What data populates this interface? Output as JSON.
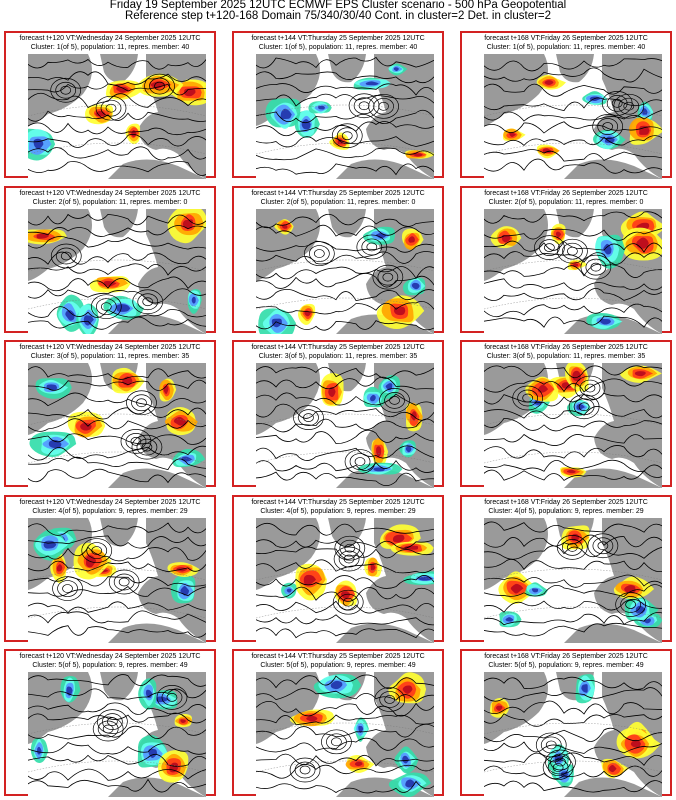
{
  "header": {
    "line1": "Friday 19 September 2025 12UTC ECMWF EPS Cluster scenario - 500 hPa Geopotential",
    "line2": "Reference step t+120-168 Domain 75/340/30/40 Cont. in cluster=2 Det. in cluster=2"
  },
  "panels": [
    {
      "forecast": "forecast t+120 VT:Wednesday 24 September 2025 12UTC",
      "cluster": "Cluster: 1(of 5), population: 11, repres. member: 40"
    },
    {
      "forecast": "forecast t+144 VT:Thursday 25 September 2025 12UTC",
      "cluster": "Cluster: 1(of 5), population: 11, repres. member: 40"
    },
    {
      "forecast": "forecast t+168 VT:Friday 26 September 2025 12UTC",
      "cluster": "Cluster: 1(of 5), population: 11, repres. member: 40"
    },
    {
      "forecast": "forecast t+120 VT:Wednesday 24 September 2025 12UTC",
      "cluster": "Cluster: 2(of 5), population: 11, repres. member: 0"
    },
    {
      "forecast": "forecast t+144 VT:Thursday 25 September 2025 12UTC",
      "cluster": "Cluster: 2(of 5), population: 11, repres. member: 0"
    },
    {
      "forecast": "forecast t+168 VT:Friday 26 September 2025 12UTC",
      "cluster": "Cluster: 2(of 5), population: 11, repres. member: 0"
    },
    {
      "forecast": "forecast t+120 VT:Wednesday 24 September 2025 12UTC",
      "cluster": "Cluster: 3(of 5), population: 11, repres. member: 35"
    },
    {
      "forecast": "forecast t+144 VT:Thursday 25 September 2025 12UTC",
      "cluster": "Cluster: 3(of 5), population: 11, repres. member: 35"
    },
    {
      "forecast": "forecast t+168 VT:Friday 26 September 2025 12UTC",
      "cluster": "Cluster: 3(of 5), population: 11, repres. member: 35"
    },
    {
      "forecast": "forecast t+120 VT:Wednesday 24 September 2025 12UTC",
      "cluster": "Cluster: 4(of 5), population: 9, repres. member: 29"
    },
    {
      "forecast": "forecast t+144 VT:Thursday 25 September 2025 12UTC",
      "cluster": "Cluster: 4(of 5), population: 9, repres. member: 29"
    },
    {
      "forecast": "forecast t+168 VT:Friday 26 September 2025 12UTC",
      "cluster": "Cluster: 4(of 5), population: 9, repres. member: 29"
    },
    {
      "forecast": "forecast t+120 VT:Wednesday 24 September 2025 12UTC",
      "cluster": "Cluster: 5(of 5), population: 9, repres. member: 49"
    },
    {
      "forecast": "forecast t+144 VT:Thursday 25 September 2025 12UTC",
      "cluster": "Cluster: 5(of 5), population: 9, repres. member: 49"
    },
    {
      "forecast": "forecast t+168 VT:Friday 26 September 2025 12UTC",
      "cluster": "Cluster: 5(of 5), population: 9, repres. member: 49"
    }
  ],
  "colors": {
    "border": "#d32222",
    "land": "#9a9a9a",
    "ocean": "#ffffff",
    "positive_anomaly": [
      "#ffff33",
      "#ffa500",
      "#ff3a1a",
      "#b80a1e"
    ],
    "negative_anomaly": [
      "#33ddaa",
      "#66ffee",
      "#5599ff",
      "#2233aa"
    ],
    "contour": "#000000"
  }
}
